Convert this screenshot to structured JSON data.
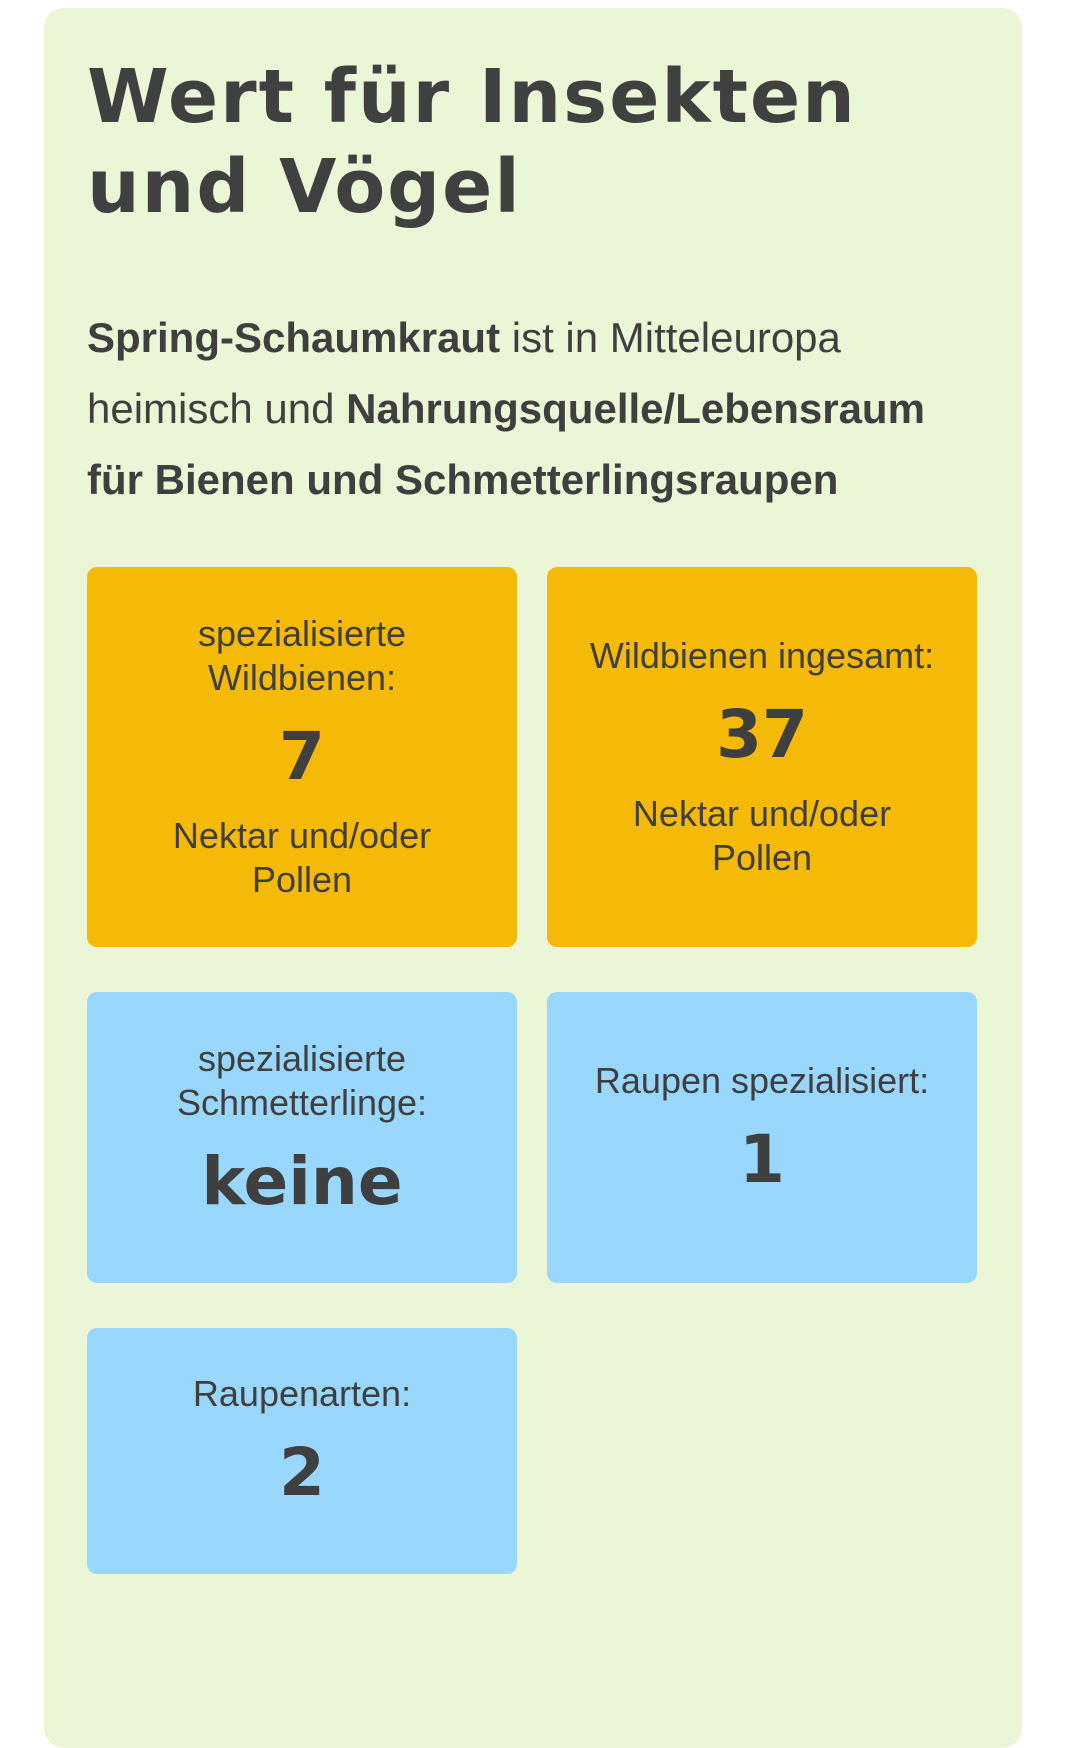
{
  "header": {
    "title": "Wert für Insekten und Vögel"
  },
  "intro": [
    {
      "text": "Spring-Schaumkraut",
      "bold": true
    },
    {
      "text": " ist in Mitteleuropa heimisch und ",
      "bold": false
    },
    {
      "text": "Nahrungsquelle/Lebensraum für Bienen und Schmetterlingsraupen",
      "bold": true
    }
  ],
  "tiles": [
    {
      "label": "spezialisierte Wildbienen:",
      "value": 7,
      "note": "Nektar und/oder Pollen",
      "color": "#f5b907"
    },
    {
      "label": "Wildbienen ingesamt:",
      "value": 37,
      "note": "Nektar und/oder Pollen",
      "color": "#f5b907"
    },
    {
      "label": "spezialisierte Schmetterlinge:",
      "value": "keine",
      "color": "#99d7fd"
    },
    {
      "label": "Raupen spezialisiert:",
      "value": 1,
      "color": "#99d7fd"
    },
    {
      "label": "Raupenarten:",
      "value": 2,
      "color": "#99d7fd"
    }
  ]
}
